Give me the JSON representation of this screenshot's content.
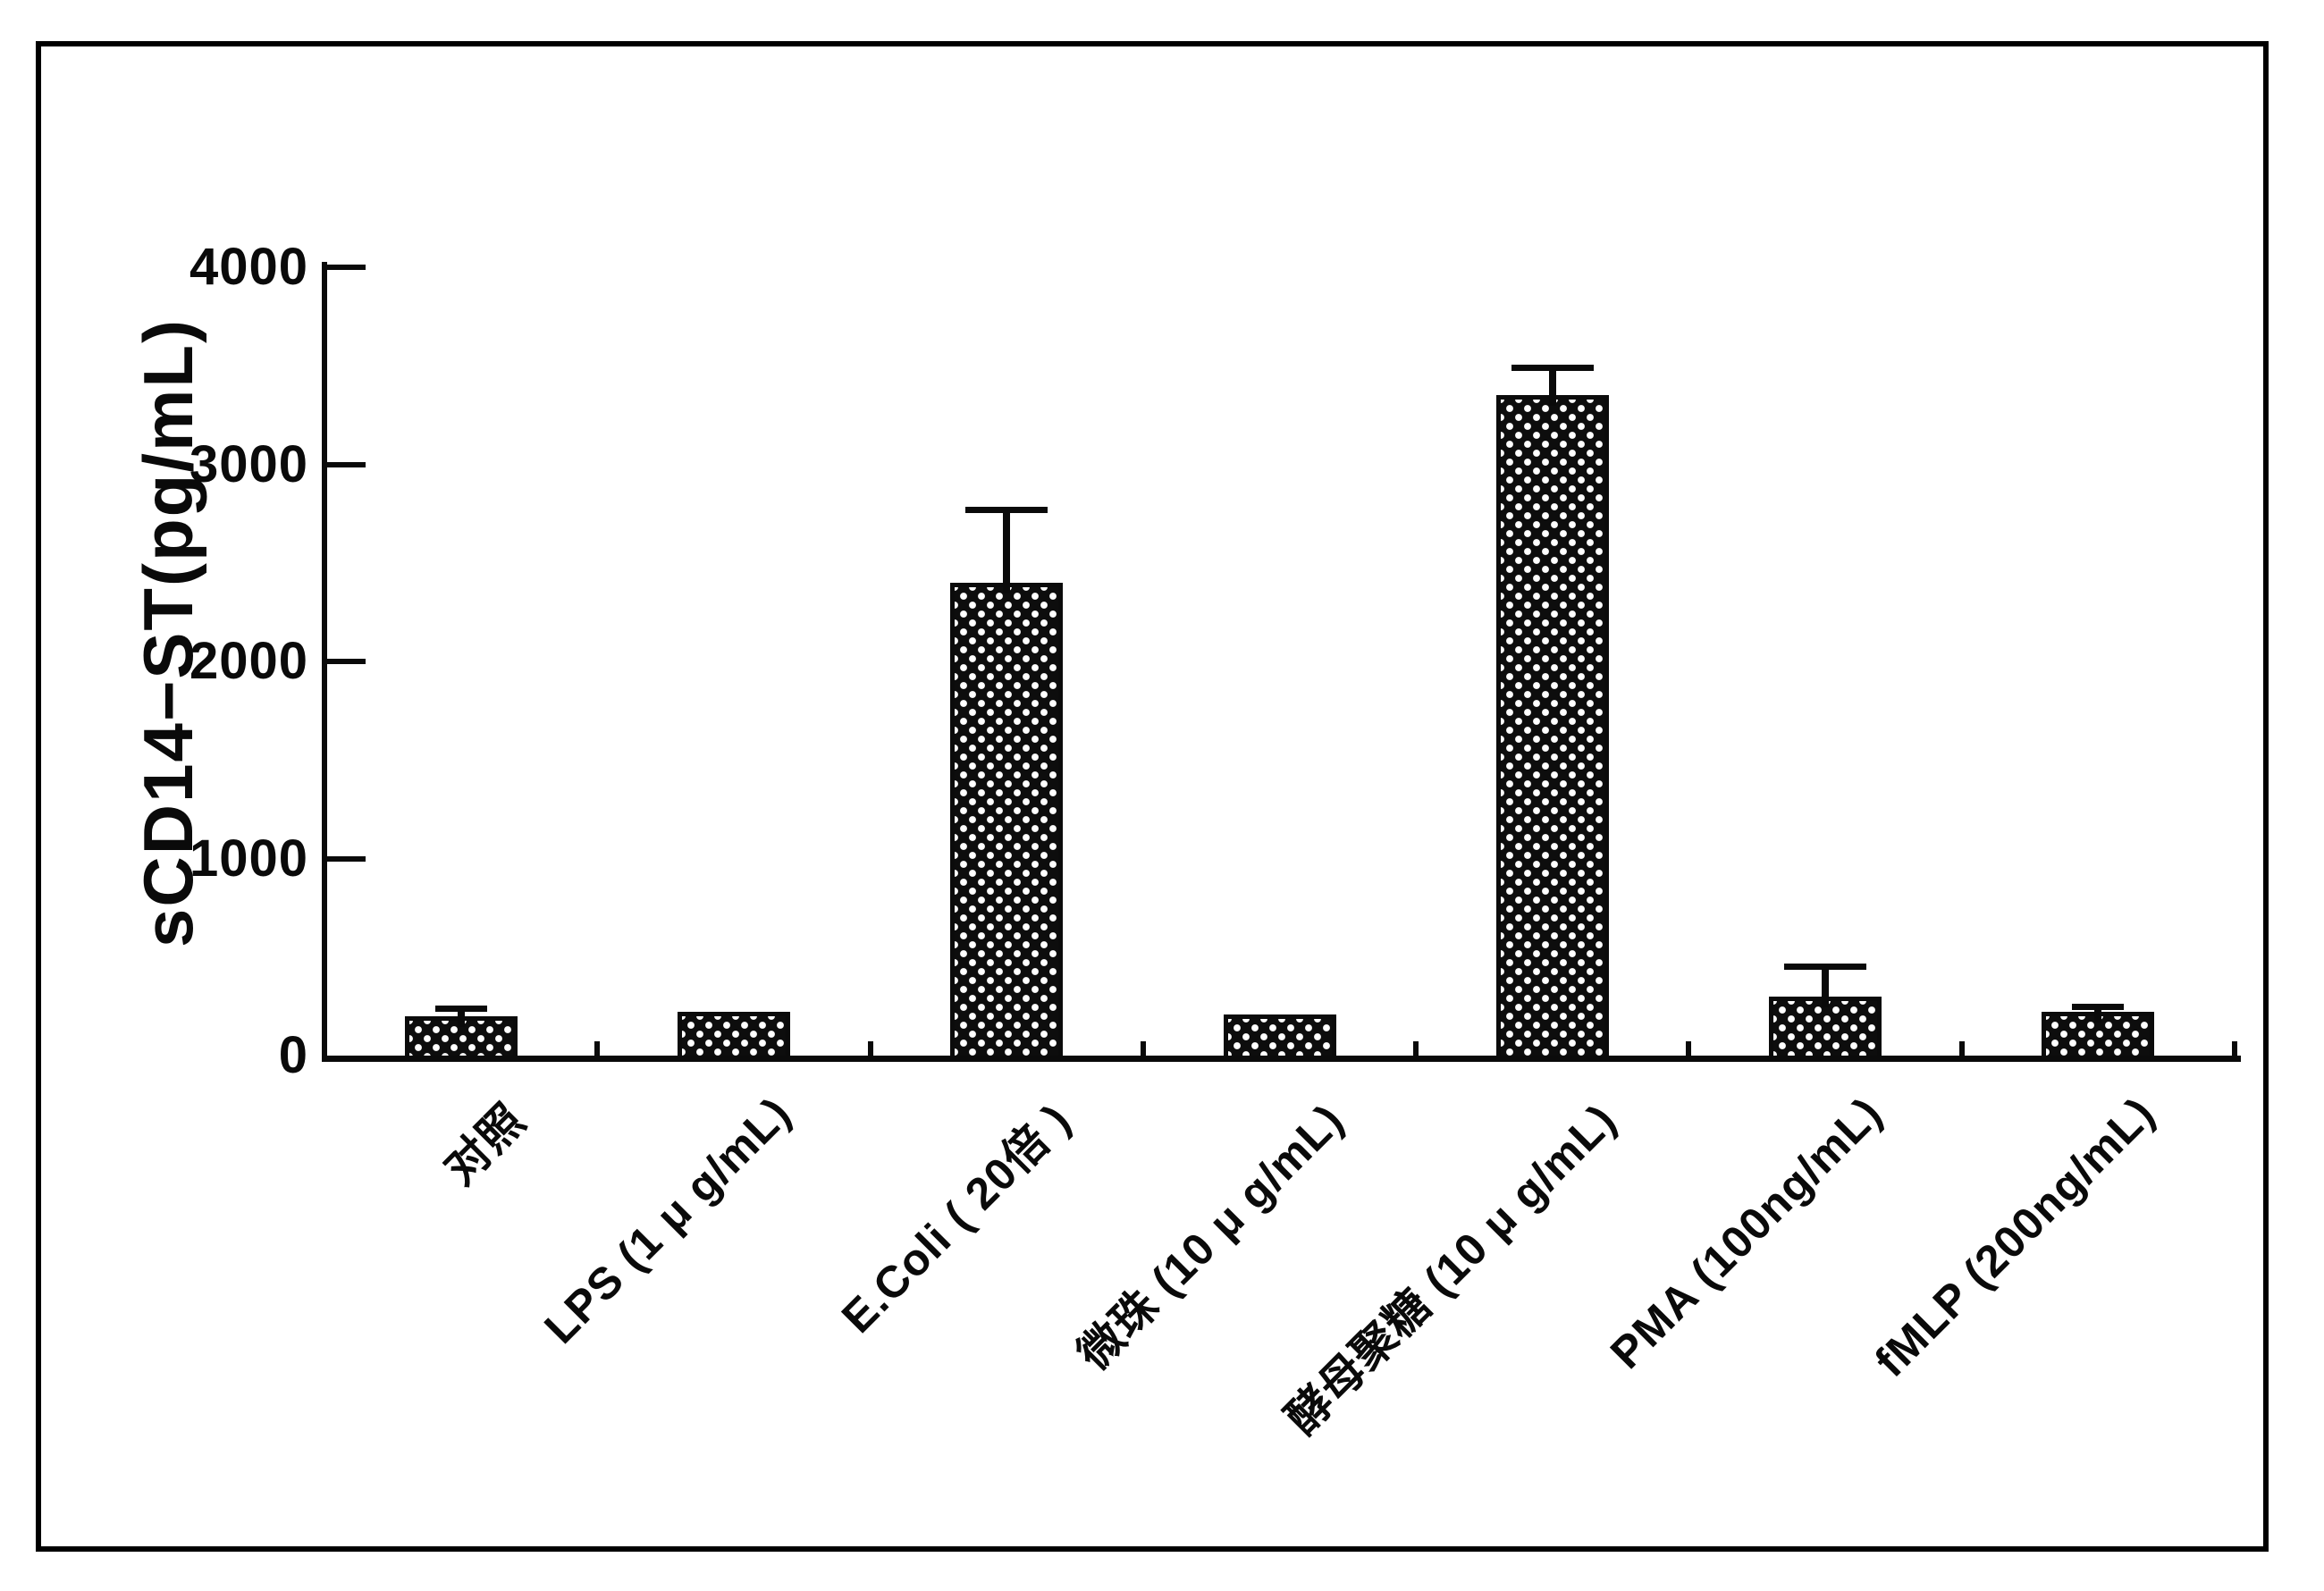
{
  "figure": {
    "background_color": "#ffffff",
    "frame_color": "#000000",
    "ink_color": "#0a0a0a"
  },
  "chart_data": {
    "type": "bar",
    "title": "",
    "xlabel": "",
    "ylabel": "sCD14−ST(pg/mL)",
    "ylim": [
      0,
      4000
    ],
    "yticks": [
      0,
      1000,
      2000,
      3000,
      4000
    ],
    "ytick_labels": [
      "0",
      "1000",
      "2000",
      "3000",
      "4000"
    ],
    "categories": [
      "对照",
      "LPS (1 μ g/mL)",
      "E.Coli ( 20倍 )",
      "微珠 (10 μ g/mL)",
      "酵母聚糖 (10 μ g/mL)",
      "PMA (100ng/mL)",
      "fMLP (200ng/mL)"
    ],
    "values": [
      200,
      220,
      2400,
      210,
      3350,
      300,
      220
    ],
    "errors_plus": [
      40,
      0,
      370,
      0,
      140,
      155,
      30
    ],
    "bar_color": "#0d0d0d",
    "bar_pattern": "black-with-white-stipple-dots",
    "error_bar_color": "#0a0a0a",
    "grid": false,
    "legend": null
  }
}
